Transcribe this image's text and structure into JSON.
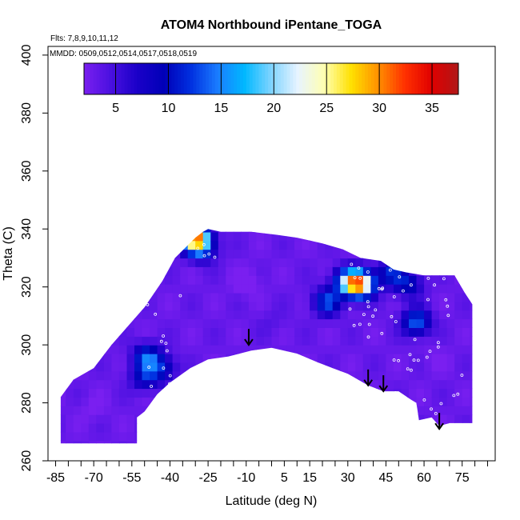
{
  "chart_data": {
    "type": "heatmap",
    "title": "ATOM4 Northbound iPentane_TOGA",
    "flights_note": "Flts: 7,8,9,10,11,12",
    "dates_note": "MMDD: 0509,0512,0514,0517,0518,0519",
    "xlabel": "Latitude (deg N)",
    "ylabel": "Theta (C)",
    "xlim": [
      -88,
      88
    ],
    "ylim": [
      260,
      403
    ],
    "x_ticks": [
      -85,
      -70,
      -55,
      -40,
      -25,
      -10,
      5,
      15,
      30,
      45,
      60,
      75
    ],
    "x_minor_ticks": [
      -80,
      -75,
      -65,
      -60,
      -50,
      -45,
      -35,
      -30,
      -20,
      -15,
      -5,
      0,
      10,
      20,
      25,
      35,
      40,
      50,
      55,
      65,
      70,
      80,
      85
    ],
    "y_ticks": [
      260,
      280,
      300,
      320,
      340,
      360,
      380,
      400
    ],
    "colorbar": {
      "min": 2,
      "max": 37.5,
      "ticks": [
        5,
        10,
        15,
        20,
        25,
        30,
        35
      ],
      "colors": [
        "#7a1ff0",
        "#4a10e0",
        "#1a00c8",
        "#0000b8",
        "#0030e0",
        "#1a7cff",
        "#00b8ff",
        "#7fd4ff",
        "#e8f4ff",
        "#ffffb0",
        "#ffe000",
        "#ff9000",
        "#ff3000",
        "#e00000",
        "#b01818"
      ]
    },
    "field": {
      "background_value": 3,
      "hotspots": [
        {
          "lat": 35,
          "theta": 321,
          "value": 27
        },
        {
          "lat": 30,
          "theta": 322,
          "value": 17
        },
        {
          "lat": 22,
          "theta": 315,
          "value": 13
        },
        {
          "lat": -30,
          "theta": 337,
          "value": 30
        },
        {
          "lat": -27,
          "theta": 333,
          "value": 10
        },
        {
          "lat": -49,
          "theta": 296,
          "value": 13
        },
        {
          "lat": -50,
          "theta": 289,
          "value": 10
        },
        {
          "lat": -43,
          "theta": 292,
          "value": 10
        },
        {
          "lat": 57,
          "theta": 308,
          "value": 14
        },
        {
          "lat": 47,
          "theta": 325,
          "value": 11
        },
        {
          "lat": 54,
          "theta": 321,
          "value": 10
        },
        {
          "lat": -10,
          "theta": 322,
          "value": 1
        },
        {
          "lat": 0,
          "theta": 308,
          "value": 4
        },
        {
          "lat": 65,
          "theta": 295,
          "value": 2
        },
        {
          "lat": -70,
          "theta": 278,
          "value": 2
        }
      ],
      "boundary": [
        [
          -83,
          272
        ],
        [
          -83,
          282
        ],
        [
          -78,
          288
        ],
        [
          -70,
          292
        ],
        [
          -63,
          300
        ],
        [
          -55,
          308
        ],
        [
          -50,
          313
        ],
        [
          -43,
          322
        ],
        [
          -38,
          330
        ],
        [
          -30,
          337
        ],
        [
          -27,
          339
        ],
        [
          -25,
          340
        ],
        [
          -20,
          339
        ],
        [
          -8,
          339
        ],
        [
          2,
          338
        ],
        [
          10,
          337
        ],
        [
          20,
          335
        ],
        [
          28,
          333
        ],
        [
          35,
          330
        ],
        [
          43,
          329
        ],
        [
          48,
          326
        ],
        [
          53,
          325
        ],
        [
          60,
          324
        ],
        [
          72,
          324
        ],
        [
          76,
          318
        ],
        [
          79,
          314
        ],
        [
          79,
          273
        ],
        [
          70,
          273
        ],
        [
          66,
          272
        ],
        [
          63,
          275
        ],
        [
          58,
          274
        ],
        [
          57,
          280
        ],
        [
          55,
          281
        ],
        [
          50,
          284
        ],
        [
          44,
          284
        ],
        [
          38,
          286
        ],
        [
          30,
          290
        ],
        [
          24,
          292
        ],
        [
          18,
          294
        ],
        [
          10,
          297
        ],
        [
          0,
          299
        ],
        [
          -8,
          298
        ],
        [
          -17,
          296
        ],
        [
          -25,
          295
        ],
        [
          -32,
          292
        ],
        [
          -40,
          287
        ],
        [
          -45,
          283
        ],
        [
          -50,
          277
        ],
        [
          -53,
          275
        ],
        [
          -53,
          266
        ],
        [
          -83,
          266
        ]
      ]
    },
    "markers": [
      {
        "lat": -9,
        "theta": 300
      },
      {
        "lat": 38,
        "theta": 286
      },
      {
        "lat": 44,
        "theta": 284
      },
      {
        "lat": 66,
        "theta": 271
      }
    ]
  }
}
